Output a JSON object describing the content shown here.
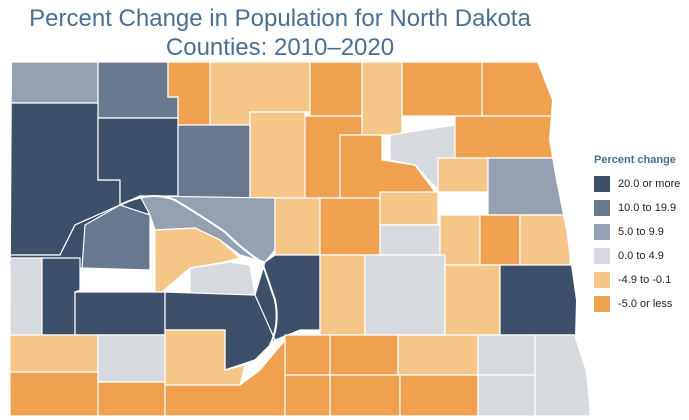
{
  "title": {
    "line1": "Percent Change in Population for North Dakota",
    "line2": "Counties: 2010–2020"
  },
  "legend": {
    "title": "Percent change",
    "items": [
      {
        "label": "20.0 or more",
        "color": "#3e4f6a"
      },
      {
        "label": "10.0 to 19.9",
        "color": "#67788f"
      },
      {
        "label": "5.0 to 9.9",
        "color": "#95a1b1"
      },
      {
        "label": "0.0 to 4.9",
        "color": "#d6d9de"
      },
      {
        "label": "-4.9 to -0.1",
        "color": "#f6c588"
      },
      {
        "label": "-5.0 or less",
        "color": "#f0a14f"
      }
    ]
  },
  "map": {
    "state": "North Dakota",
    "border_color": "#ffffff"
  }
}
